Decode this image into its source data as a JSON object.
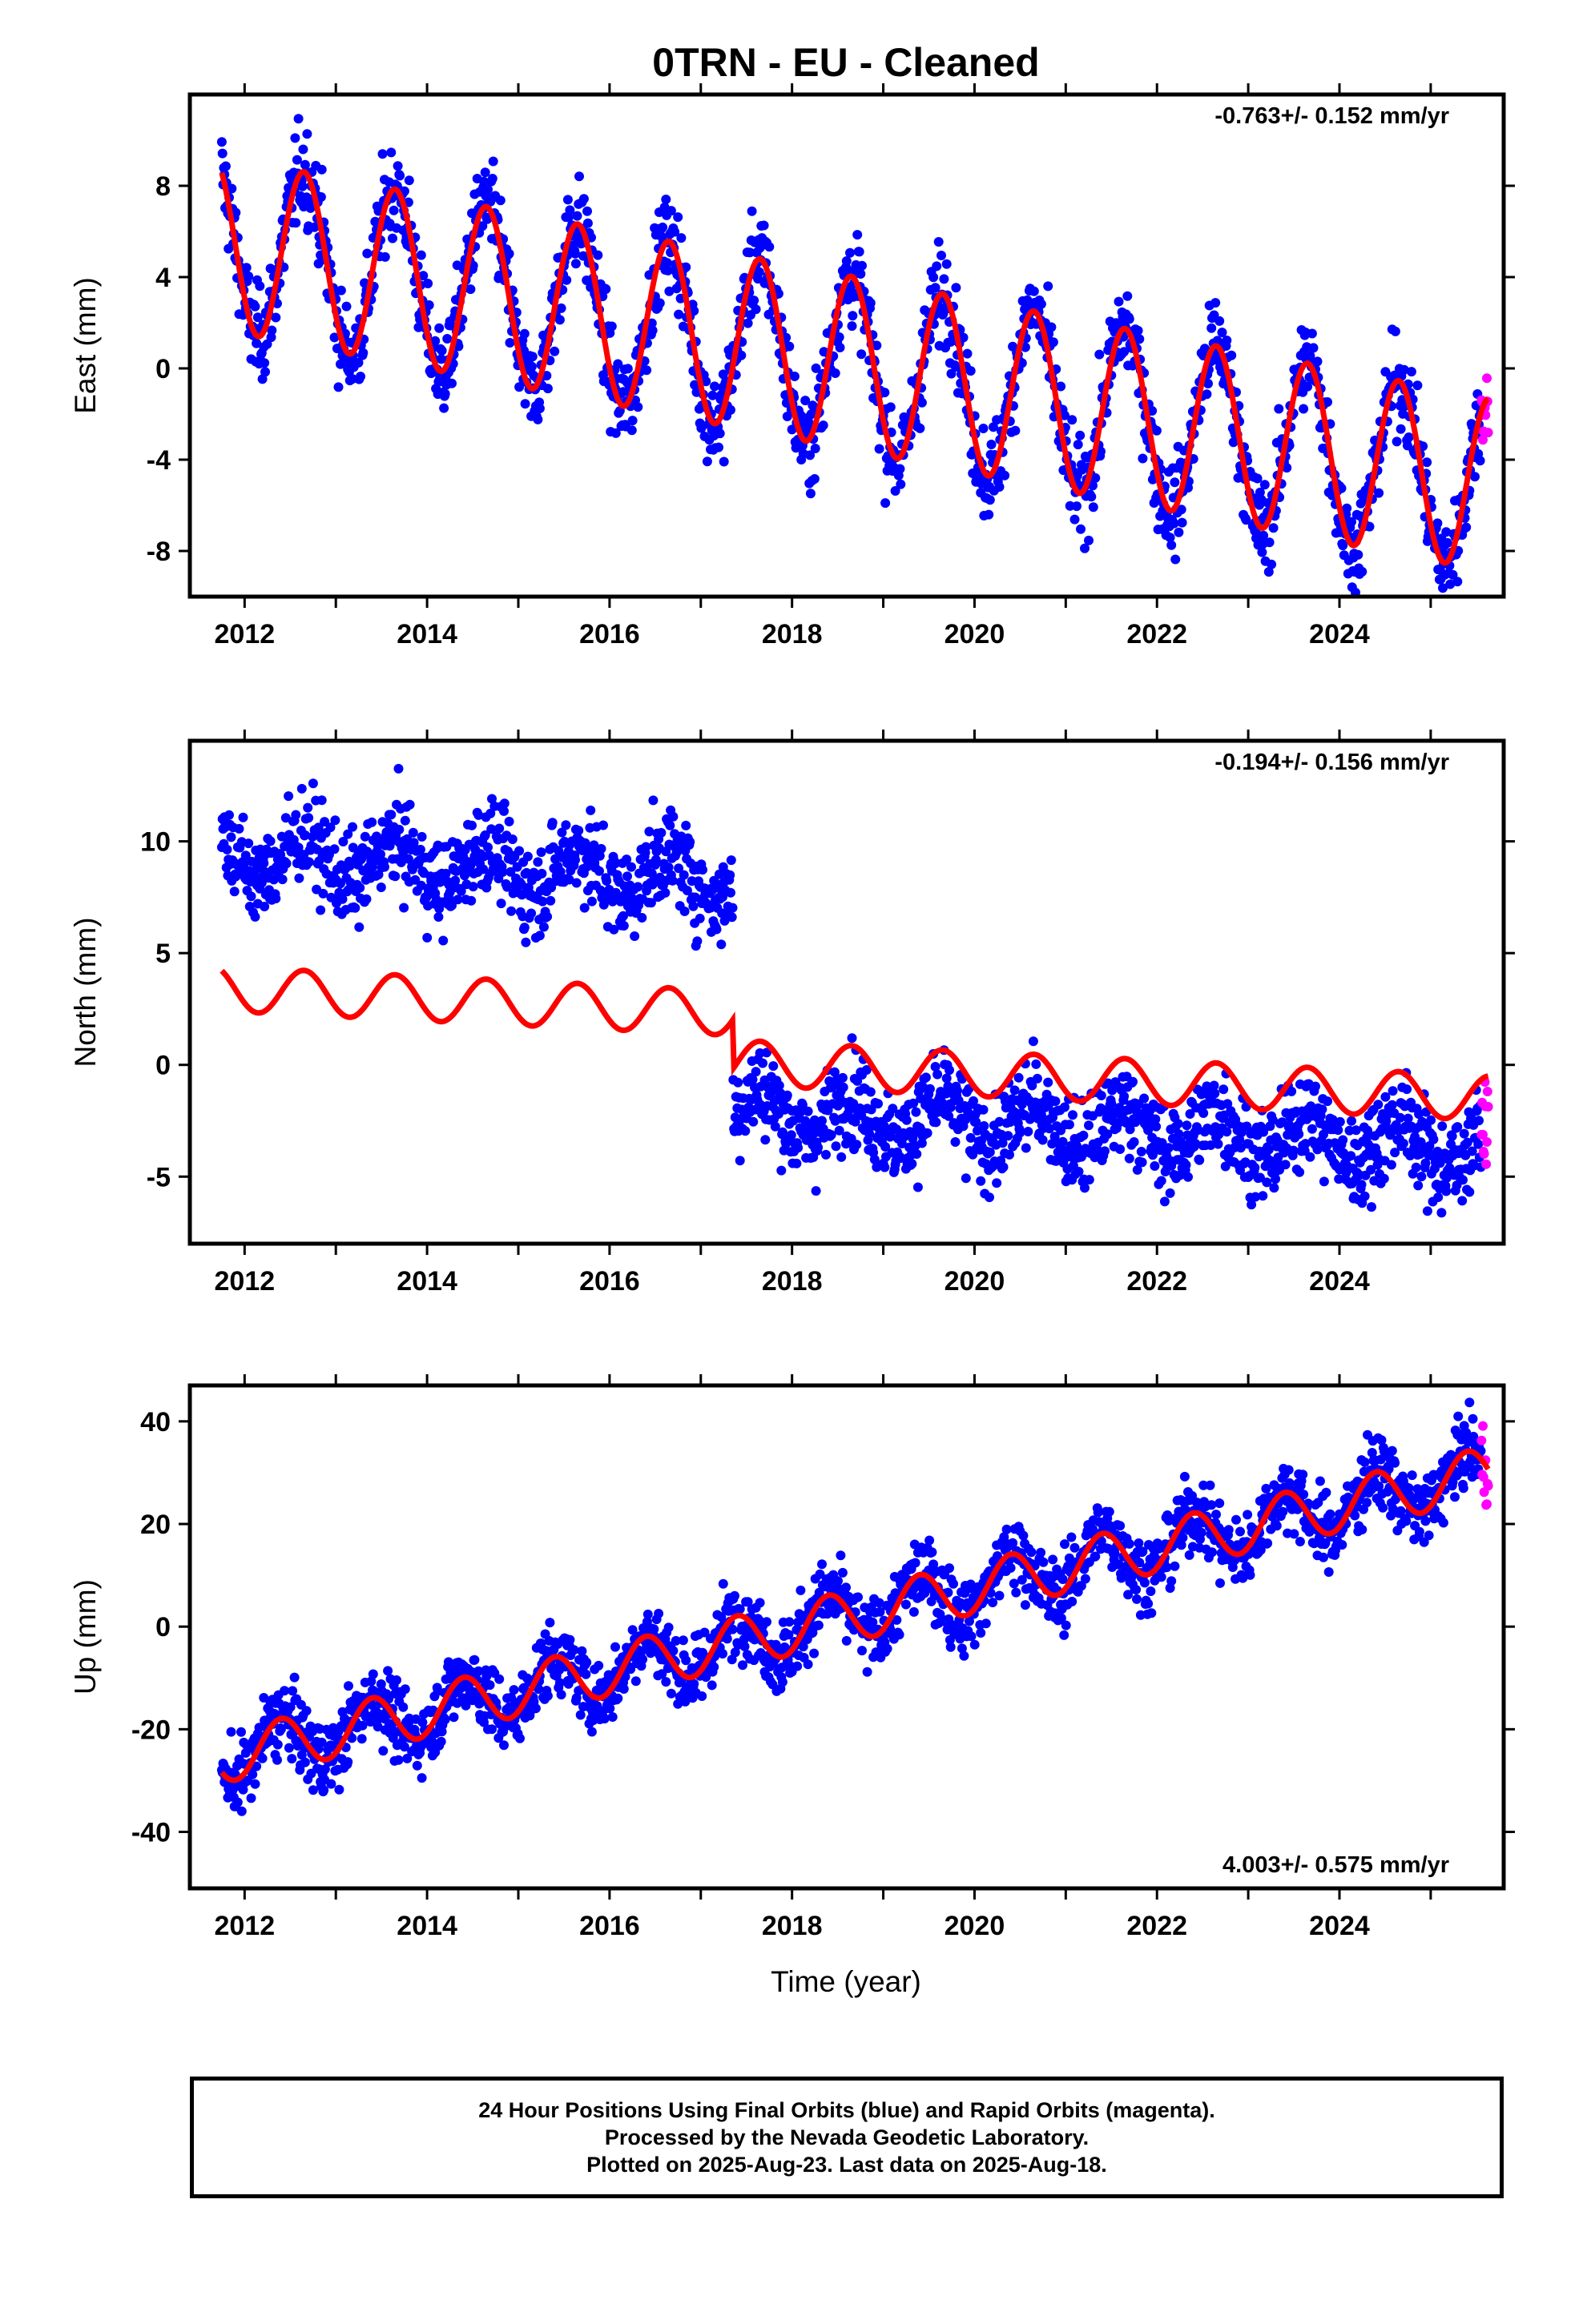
{
  "title": "0TRN  - EU - Cleaned",
  "xlabel": "Time (year)",
  "footer": {
    "line1": "24 Hour Positions Using Final Orbits (blue) and Rapid Orbits (magenta).",
    "line2": "Processed by the Nevada Geodetic Laboratory.",
    "line3": "Plotted on 2025-Aug-23. Last data on 2025-Aug-18."
  },
  "colors": {
    "final": "#0000ff",
    "rapid": "#ff00ff",
    "model": "#ff0000",
    "axis": "#000000"
  },
  "chart_data": [
    {
      "type": "scatter",
      "ylabel": "East (mm)",
      "rate": "-0.763+/- 0.152 mm/yr",
      "xlim": [
        2011.4,
        2025.8
      ],
      "ylim": [
        -10,
        12
      ],
      "xticks": [
        2012,
        2014,
        2016,
        2018,
        2020,
        2022,
        2024
      ],
      "yticks": [
        -8,
        -4,
        0,
        4,
        8
      ],
      "data_start": 2011.75,
      "data_end": 2025.63,
      "rapid_start": 2025.55,
      "model": {
        "offset": 5.5,
        "rate": -0.763,
        "amp": 3.8,
        "phase": 0.1,
        "step": null
      },
      "noise": 1.3
    },
    {
      "type": "scatter",
      "ylabel": "North (mm)",
      "rate": "-0.194+/- 0.156 mm/yr",
      "xlim": [
        2011.4,
        2025.8
      ],
      "ylim": [
        -8,
        14.5
      ],
      "xticks": [
        2012,
        2014,
        2016,
        2018,
        2020,
        2022,
        2024
      ],
      "yticks": [
        -5,
        0,
        5,
        10
      ],
      "data_start": 2011.75,
      "data_end": 2025.63,
      "rapid_start": 2025.55,
      "model": {
        "offset": 3.4,
        "rate": -0.194,
        "amp": 1.0,
        "phase": 0.1,
        "step": {
          "at": 2017.35,
          "model_jump": -2.2,
          "data_jump": -10.4
        }
      },
      "data_offset": 6.0,
      "noise": 1.3
    },
    {
      "type": "scatter",
      "ylabel": "Up (mm)",
      "rate": "4.003+/- 0.575 mm/yr",
      "xlim": [
        2011.4,
        2025.8
      ],
      "ylim": [
        -51,
        47
      ],
      "xticks": [
        2012,
        2014,
        2016,
        2018,
        2020,
        2022,
        2024
      ],
      "yticks": [
        -40,
        -20,
        0,
        20,
        40
      ],
      "data_start": 2011.75,
      "data_end": 2025.63,
      "rapid_start": 2025.55,
      "model": {
        "offset": -25.5,
        "rate": 4.003,
        "amp": 5.0,
        "phase": 0.35,
        "step": null
      },
      "noise": 4.5
    }
  ]
}
